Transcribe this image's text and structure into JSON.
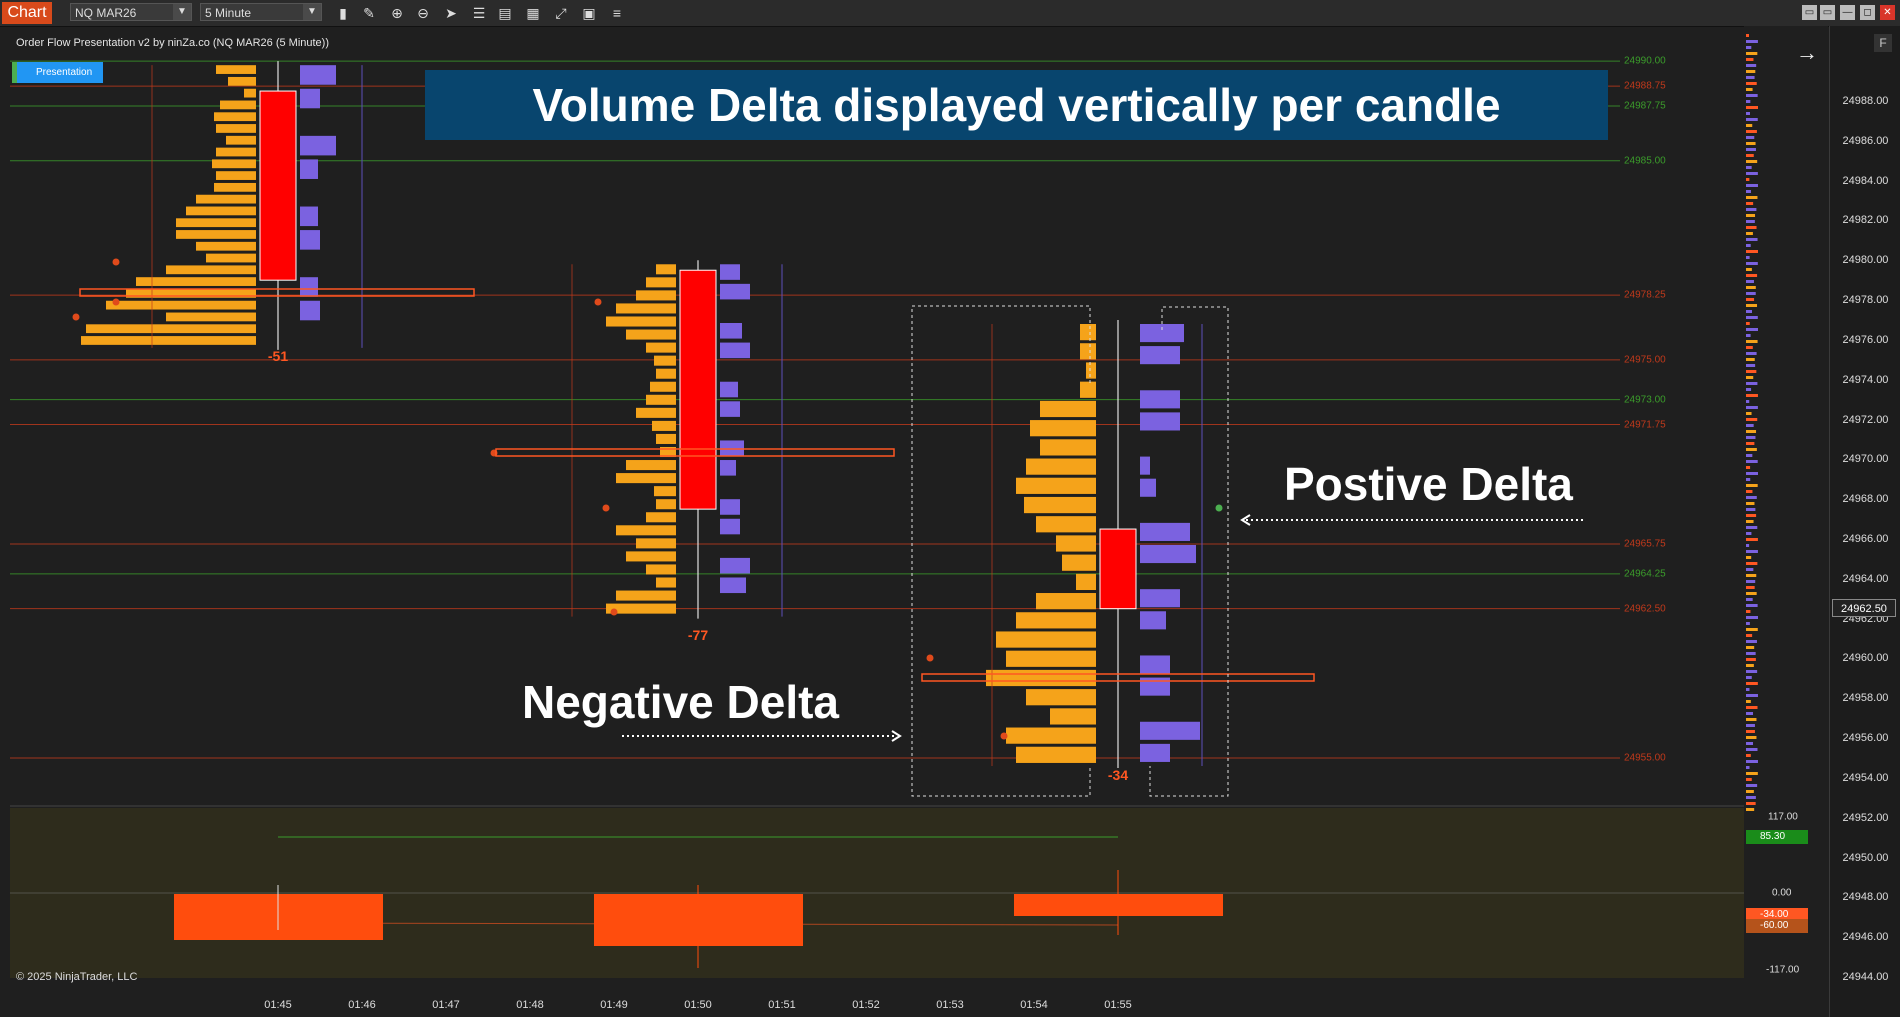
{
  "toolbar": {
    "chart_label": "Chart",
    "instrument": "NQ MAR26",
    "interval": "5 Minute",
    "tools": [
      "bar-chart-icon",
      "pencil-icon",
      "zoom-in-icon",
      "zoom-out-icon",
      "cursor-icon",
      "properties-icon",
      "data-box-icon",
      "strategy-icon",
      "templates-icon",
      "list-icon"
    ],
    "window_buttons": [
      "▭",
      "▭",
      "—",
      "◻",
      "✕"
    ]
  },
  "chart": {
    "indicator_title": "Order Flow Presentation v2 by ninZa.co (NQ MAR26 (5 Minute))",
    "presentation_button": "Presentation",
    "banner": "Volume Delta displayed vertically per candle",
    "callout_positive": "Postive Delta",
    "callout_negative": "Negative Delta",
    "candle_deltas": [
      "-51",
      "-77",
      "-34"
    ],
    "copyright": "© 2025 NinjaTrader, LLC",
    "colors": {
      "down_candle": "#ff0000",
      "sell_volume": "#f5a31a",
      "buy_volume": "#7b62e0",
      "negative_delta": "#ff5722",
      "banner_bg": "#08456e",
      "resistance_line": "#c0391b",
      "support_line": "#3b9c2b"
    }
  },
  "price_axis": {
    "ticks": [
      "24988.00",
      "24986.00",
      "24984.00",
      "24982.00",
      "24980.00",
      "24978.00",
      "24976.00",
      "24974.00",
      "24972.00",
      "24970.00",
      "24968.00",
      "24966.00",
      "24964.00",
      "24962.00",
      "24960.00",
      "24958.00",
      "24956.00",
      "24954.00",
      "24952.00",
      "24950.00",
      "24948.00",
      "24946.00",
      "24944.00"
    ],
    "current_price": "24962.50",
    "f_button": "F"
  },
  "levels": [
    {
      "label": "24990.00",
      "color": "#3b9c2b"
    },
    {
      "label": "24988.75",
      "color": "#c0391b"
    },
    {
      "label": "24987.75",
      "color": "#3b9c2b"
    },
    {
      "label": "24985.00",
      "color": "#3b9c2b"
    },
    {
      "label": "24978.25",
      "color": "#c0391b"
    },
    {
      "label": "24975.00",
      "color": "#c0391b"
    },
    {
      "label": "24973.00",
      "color": "#3b9c2b"
    },
    {
      "label": "24971.75",
      "color": "#c0391b"
    },
    {
      "label": "24965.75",
      "color": "#c0391b"
    },
    {
      "label": "24964.25",
      "color": "#3b9c2b"
    },
    {
      "label": "24962.50",
      "color": "#c0391b"
    },
    {
      "label": "24955.00",
      "color": "#c0391b"
    }
  ],
  "oscillator": {
    "axis_labels": [
      "117.00",
      "0.00",
      "-117.00"
    ],
    "badges": [
      {
        "label": "85.30",
        "color": "#1a8c1a"
      },
      {
        "label": "-34.00",
        "color": "#ff5722"
      },
      {
        "label": "-60.00",
        "color": "#b5531b"
      }
    ]
  },
  "time_axis": [
    "01:45",
    "01:46",
    "01:47",
    "01:48",
    "01:49",
    "01:50",
    "01:51",
    "01:52",
    "01:53",
    "01:54",
    "01:55"
  ]
}
